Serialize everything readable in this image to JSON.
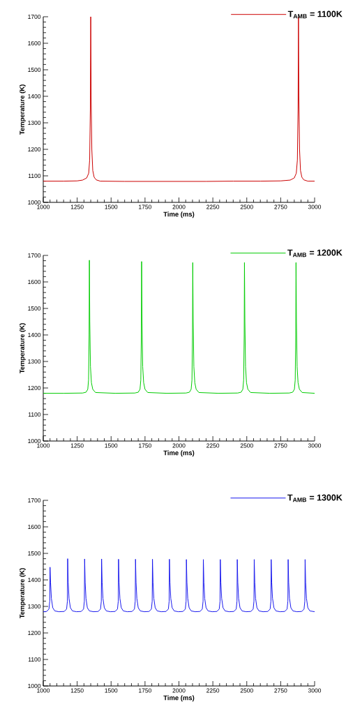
{
  "chart_data": [
    {
      "type": "line",
      "xlabel": "Time (ms)",
      "ylabel": "Temperature (K)",
      "xlim": [
        1000,
        3000
      ],
      "ylim": [
        1000,
        1700
      ],
      "xticks": [
        1000,
        1250,
        1500,
        1750,
        2000,
        2250,
        2500,
        2750,
        3000
      ],
      "yticks": [
        1000,
        1100,
        1200,
        1300,
        1400,
        1500,
        1600,
        1700
      ],
      "legend": "top right",
      "x": [
        1000,
        1150,
        1250,
        1290,
        1320,
        1335,
        1342,
        1347,
        1350,
        1353,
        1358,
        1365,
        1375,
        1390,
        1420,
        1600,
        1800,
        2000,
        2200,
        2400,
        2600,
        2750,
        2820,
        2850,
        2865,
        2873,
        2878,
        2881,
        2884,
        2889,
        2896,
        2906,
        2920,
        2950,
        3000
      ],
      "series": [
        {
          "name": "T$_{AMB}$ = 1100K",
          "color": "#cc0000",
          "values": [
            1080,
            1080,
            1081,
            1084,
            1092,
            1110,
            1160,
            1350,
            1700,
            1400,
            1200,
            1120,
            1095,
            1085,
            1080,
            1079,
            1079,
            1079,
            1079,
            1080,
            1080,
            1081,
            1084,
            1092,
            1110,
            1160,
            1350,
            1700,
            1400,
            1200,
            1120,
            1095,
            1085,
            1080,
            1080
          ]
        }
      ]
    },
    {
      "type": "line",
      "xlabel": "Time (ms)",
      "ylabel": "Temperature (K)",
      "xlim": [
        1000,
        3000
      ],
      "ylim": [
        1000,
        1700
      ],
      "xticks": [
        1000,
        1250,
        1500,
        1750,
        2000,
        2250,
        2500,
        2750,
        3000
      ],
      "yticks": [
        1000,
        1100,
        1200,
        1300,
        1400,
        1500,
        1600,
        1700
      ],
      "legend": "top right",
      "x": [
        1000,
        1150,
        1290,
        1315,
        1328,
        1334,
        1338,
        1340,
        1343,
        1348,
        1355,
        1365,
        1385,
        1530,
        1675,
        1700,
        1713,
        1719,
        1723,
        1725,
        1728,
        1733,
        1740,
        1750,
        1770,
        1910,
        2052,
        2077,
        2090,
        2096,
        2100,
        2102,
        2105,
        2110,
        2117,
        2127,
        2147,
        2290,
        2433,
        2458,
        2471,
        2477,
        2481,
        2483,
        2486,
        2491,
        2498,
        2508,
        2528,
        2670,
        2813,
        2838,
        2851,
        2857,
        2861,
        2863,
        2866,
        2871,
        2878,
        2888,
        2908,
        3000
      ],
      "series": [
        {
          "name": "T$_{AMB}$ = 1200K",
          "color": "#00cc00",
          "values": [
            1180,
            1180,
            1181,
            1184,
            1195,
            1230,
            1400,
            1682,
            1450,
            1280,
            1220,
            1195,
            1183,
            1180,
            1181,
            1184,
            1195,
            1230,
            1400,
            1677,
            1450,
            1280,
            1220,
            1195,
            1183,
            1180,
            1181,
            1184,
            1195,
            1230,
            1400,
            1673,
            1450,
            1280,
            1220,
            1195,
            1183,
            1180,
            1181,
            1184,
            1195,
            1230,
            1400,
            1673,
            1450,
            1280,
            1220,
            1195,
            1183,
            1180,
            1181,
            1184,
            1195,
            1230,
            1400,
            1673,
            1450,
            1280,
            1220,
            1195,
            1183,
            1180
          ]
        }
      ]
    },
    {
      "type": "line",
      "xlabel": "Time (ms)",
      "ylabel": "Temperature (K)",
      "xlim": [
        1000,
        3000
      ],
      "ylim": [
        1000,
        1700
      ],
      "xticks": [
        1000,
        1250,
        1500,
        1750,
        2000,
        2250,
        2500,
        2750,
        3000
      ],
      "yticks": [
        1000,
        1100,
        1200,
        1300,
        1400,
        1500,
        1600,
        1700
      ],
      "legend": "top right",
      "x": [
        1000,
        1025,
        1042,
        1048,
        1050,
        1054,
        1060,
        1070,
        1085,
        1115,
        1155,
        1172,
        1178,
        1180,
        1184,
        1190,
        1200,
        1215,
        1245,
        1280,
        1297,
        1303,
        1305,
        1309,
        1315,
        1325,
        1340,
        1370,
        1405,
        1422,
        1428,
        1430,
        1434,
        1440,
        1450,
        1465,
        1495,
        1530,
        1547,
        1553,
        1555,
        1559,
        1565,
        1575,
        1590,
        1620,
        1655,
        1672,
        1678,
        1680,
        1684,
        1690,
        1700,
        1715,
        1745,
        1780,
        1797,
        1803,
        1805,
        1809,
        1815,
        1825,
        1840,
        1870,
        1905,
        1922,
        1928,
        1930,
        1934,
        1940,
        1950,
        1965,
        1995,
        2030,
        2047,
        2053,
        2055,
        2059,
        2065,
        2075,
        2090,
        2120,
        2155,
        2172,
        2178,
        2180,
        2184,
        2190,
        2200,
        2215,
        2245,
        2280,
        2297,
        2303,
        2305,
        2309,
        2315,
        2325,
        2340,
        2370,
        2405,
        2422,
        2428,
        2430,
        2434,
        2440,
        2450,
        2465,
        2495,
        2530,
        2547,
        2553,
        2555,
        2559,
        2565,
        2575,
        2590,
        2620,
        2655,
        2672,
        2678,
        2680,
        2684,
        2690,
        2700,
        2715,
        2745,
        2780,
        2797,
        2803,
        2805,
        2809,
        2815,
        2825,
        2840,
        2870,
        2905,
        2922,
        2928,
        2930,
        2934,
        2940,
        2950,
        2965,
        3000
      ],
      "series": [
        {
          "name": "T$_{AMB}$ = 1300K",
          "color": "#1a1aee",
          "values": [
            1280,
            1281,
            1290,
            1320,
            1448,
            1390,
            1330,
            1295,
            1283,
            1280,
            1281,
            1290,
            1320,
            1480,
            1390,
            1330,
            1295,
            1283,
            1280,
            1281,
            1290,
            1320,
            1479,
            1390,
            1330,
            1295,
            1283,
            1280,
            1281,
            1290,
            1320,
            1479,
            1390,
            1330,
            1295,
            1283,
            1280,
            1281,
            1290,
            1320,
            1478,
            1390,
            1330,
            1295,
            1283,
            1280,
            1281,
            1290,
            1320,
            1478,
            1390,
            1330,
            1295,
            1283,
            1280,
            1281,
            1290,
            1320,
            1478,
            1390,
            1330,
            1295,
            1283,
            1280,
            1281,
            1290,
            1320,
            1478,
            1390,
            1330,
            1295,
            1283,
            1280,
            1281,
            1290,
            1320,
            1477,
            1390,
            1330,
            1295,
            1283,
            1280,
            1281,
            1290,
            1320,
            1477,
            1390,
            1330,
            1295,
            1283,
            1280,
            1281,
            1290,
            1320,
            1477,
            1390,
            1330,
            1295,
            1283,
            1280,
            1281,
            1290,
            1320,
            1477,
            1390,
            1330,
            1295,
            1283,
            1280,
            1281,
            1290,
            1320,
            1477,
            1390,
            1330,
            1295,
            1283,
            1280,
            1281,
            1290,
            1320,
            1477,
            1390,
            1330,
            1295,
            1283,
            1280,
            1281,
            1290,
            1320,
            1477,
            1390,
            1330,
            1295,
            1283,
            1280,
            1281,
            1290,
            1320,
            1477,
            1390,
            1330,
            1295,
            1283,
            1280
          ]
        }
      ]
    }
  ]
}
